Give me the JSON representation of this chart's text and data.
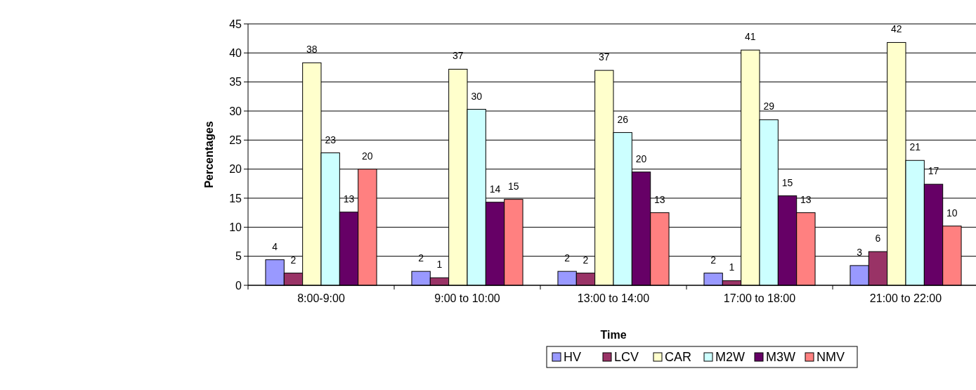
{
  "chart_data": {
    "type": "bar",
    "xlabel": "Time",
    "ylabel": "Percentages",
    "categories": [
      "8:00-9:00",
      "9:00 to 10:00",
      "13:00 to 14:00",
      "17:00 to 18:00",
      "21:00 to 22:00"
    ],
    "series": [
      {
        "name": "HV",
        "color": "#9999ff",
        "values": [
          4.4,
          2.4,
          2.4,
          2.1,
          3.4
        ],
        "value_labels": [
          "4",
          "2",
          "2",
          "2",
          "3"
        ]
      },
      {
        "name": "LCV",
        "color": "#993366",
        "values": [
          2.1,
          1.3,
          2.1,
          0.8,
          5.8
        ],
        "value_labels": [
          "2",
          "1",
          "2",
          "1",
          "6"
        ]
      },
      {
        "name": "CAR",
        "color": "#ffffcc",
        "values": [
          38.3,
          37.2,
          37.0,
          40.5,
          41.8
        ],
        "value_labels": [
          "38",
          "37",
          "37",
          "41",
          "42"
        ]
      },
      {
        "name": "M2W",
        "color": "#ccffff",
        "values": [
          22.8,
          30.3,
          26.3,
          28.5,
          21.5
        ],
        "value_labels": [
          "23",
          "30",
          "26",
          "29",
          "21"
        ]
      },
      {
        "name": "M3W",
        "color": "#660066",
        "values": [
          12.6,
          14.3,
          19.5,
          15.4,
          17.4
        ],
        "value_labels": [
          "13",
          "14",
          "20",
          "15",
          "17"
        ]
      },
      {
        "name": "NMV",
        "color": "#ff8080",
        "values": [
          20.0,
          14.8,
          12.5,
          12.5,
          10.2
        ],
        "value_labels": [
          "20",
          "15",
          "13",
          "13",
          "10"
        ]
      }
    ],
    "ylim": [
      0,
      45
    ],
    "yticks": [
      0,
      5,
      10,
      15,
      20,
      25,
      30,
      35,
      40,
      45
    ],
    "grid": "y",
    "legend": "bottom"
  }
}
